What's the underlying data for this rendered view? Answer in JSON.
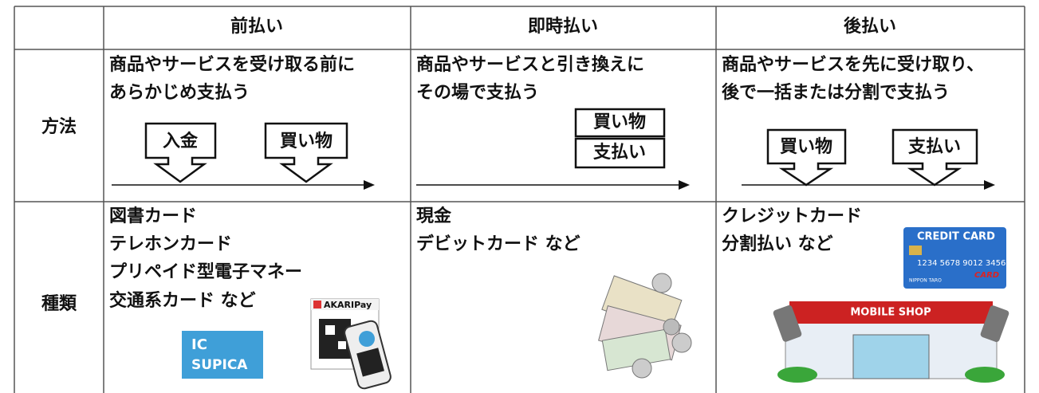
{
  "header": {
    "columns": [
      "前払い",
      "即時払い",
      "後払い"
    ]
  },
  "rows": [
    {
      "label": "方法",
      "cells": [
        {
          "lines": [
            "商品やサービスを受け取る前に",
            "あらかじめ支払う"
          ],
          "boxes": [
            "入金",
            "買い物"
          ]
        },
        {
          "lines": [
            "商品やサービスと引き換えに",
            "その場で支払う"
          ],
          "boxes": [
            "買い物",
            "支払い"
          ]
        },
        {
          "lines": [
            "商品やサービスを先に受け取り、",
            "後で一括または分割で支払う"
          ],
          "boxes": [
            "買い物",
            "支払い"
          ]
        }
      ]
    },
    {
      "label": "種類",
      "cells": [
        {
          "lines": [
            "図書カード",
            "テレホンカード",
            "プリペイド型電子マネー",
            "交通系カード など"
          ]
        },
        {
          "lines": [
            "現金",
            "デビットカード など"
          ]
        },
        {
          "lines": [
            "クレジットカード",
            "分割払い  など"
          ]
        }
      ]
    }
  ],
  "images": {
    "ic_card": [
      "IC",
      "SUPICA"
    ],
    "qr_pay": "AKARIPay",
    "credit_card": {
      "brand": "CREDIT CARD",
      "number": "1234 5678 9012 3456",
      "holder": "NIPPON TARO",
      "logo": "CARD"
    },
    "shop": "MOBILE SHOP"
  }
}
